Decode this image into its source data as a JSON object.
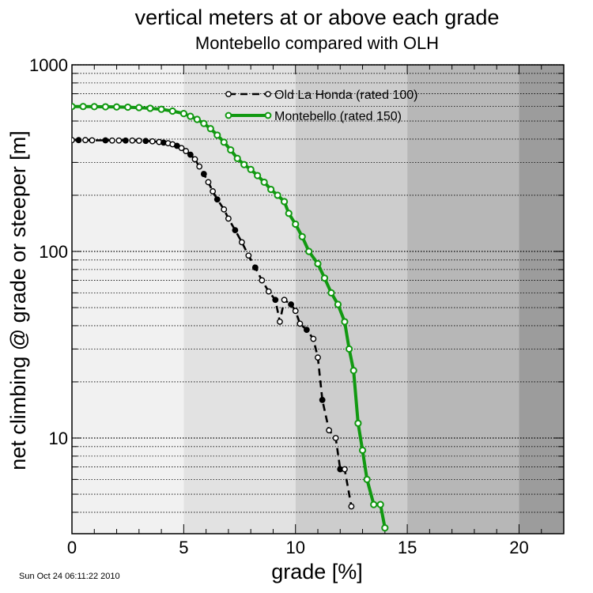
{
  "chart_data": {
    "type": "line",
    "title": "vertical meters at or above each grade",
    "subtitle": "Montebello compared with OLH",
    "xlabel": "grade [%]",
    "ylabel": "net climbing @ grade or steeper [m]",
    "xlim": [
      0,
      22
    ],
    "ylim": [
      3.3,
      1000
    ],
    "yscale": "log",
    "x_ticks": [
      0,
      5,
      10,
      15,
      20
    ],
    "y_ticks": [
      10,
      100,
      1000
    ],
    "grid": "horizontal dotted at log minor ticks",
    "legend_position": "top-center",
    "background_bands": {
      "edges": [
        0,
        5,
        10,
        15,
        20,
        22
      ],
      "colors": [
        "#f1f1f1",
        "#e2e2e2",
        "#cdcdcd",
        "#b7b7b7",
        "#9c9c9c"
      ]
    },
    "series": [
      {
        "name": "Old La Honda (rated 100)",
        "color": "#000000",
        "line_style": "dashed",
        "marker": "open-circle",
        "x": [
          0,
          0.3,
          0.6,
          0.9,
          1.5,
          1.8,
          2.1,
          2.4,
          2.7,
          3.0,
          3.3,
          3.6,
          3.9,
          4.1,
          4.3,
          4.5,
          4.7,
          4.9,
          5.1,
          5.3,
          5.5,
          5.7,
          5.9,
          6.1,
          6.3,
          6.5,
          6.8,
          7.0,
          7.3,
          7.6,
          7.9,
          8.2,
          8.5,
          8.8,
          9.1,
          9.3,
          9.5,
          9.8,
          10.0,
          10.2,
          10.5,
          10.8,
          11.0,
          11.2,
          11.5,
          11.8,
          12.0,
          12.2,
          12.5
        ],
        "y": [
          395,
          395,
          395,
          394,
          394,
          393,
          393,
          393,
          393,
          392,
          391,
          389,
          386,
          383,
          380,
          375,
          368,
          358,
          345,
          330,
          312,
          285,
          260,
          235,
          210,
          190,
          168,
          150,
          130,
          112,
          95,
          82,
          70,
          61,
          55,
          42,
          55,
          52,
          48,
          41,
          38,
          34,
          27,
          16,
          11,
          10,
          6.8,
          6.8,
          4.3
        ]
      },
      {
        "name": "Montebello (rated 150)",
        "color": "#119911",
        "line_style": "solid",
        "marker": "open-circle",
        "x": [
          0,
          0.5,
          1.0,
          1.5,
          2.0,
          2.5,
          3.0,
          3.5,
          4.0,
          4.5,
          5.0,
          5.3,
          5.6,
          5.9,
          6.2,
          6.5,
          6.8,
          7.1,
          7.4,
          7.7,
          8.0,
          8.3,
          8.6,
          8.9,
          9.2,
          9.5,
          9.7,
          10.0,
          10.3,
          10.6,
          11.0,
          11.3,
          11.6,
          11.9,
          12.2,
          12.4,
          12.6,
          12.8,
          13.0,
          13.2,
          13.5,
          13.8,
          14.0
        ],
        "y": [
          598,
          598,
          597,
          596,
          595,
          593,
          590,
          585,
          578,
          565,
          548,
          530,
          510,
          485,
          455,
          420,
          385,
          350,
          315,
          292,
          275,
          255,
          235,
          215,
          200,
          185,
          160,
          140,
          120,
          100,
          86,
          72,
          60,
          52,
          42,
          30,
          23,
          12,
          8.6,
          6.0,
          4.4,
          4.4,
          3.3
        ]
      }
    ]
  },
  "timestamp": "Sun Oct 24 06:11:22 2010"
}
